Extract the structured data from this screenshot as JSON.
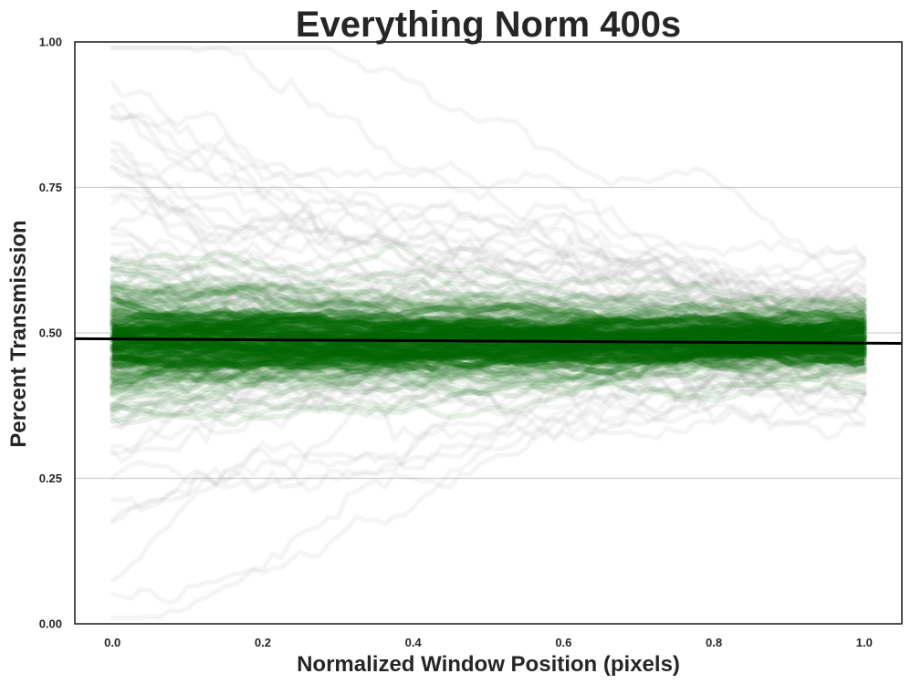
{
  "chart_data": {
    "type": "line",
    "title": "Everything Norm 400s",
    "xlabel": "Normalized Window Position (pixels)",
    "ylabel": "Percent Transmission",
    "xlim": [
      -0.05,
      1.05
    ],
    "ylim": [
      0.0,
      1.0
    ],
    "xticks": [
      0.0,
      0.2,
      0.4,
      0.6,
      0.8,
      1.0
    ],
    "xtick_labels": [
      "0.0",
      "0.2",
      "0.4",
      "0.6",
      "0.8",
      "1.0"
    ],
    "yticks": [
      0.0,
      0.25,
      0.5,
      0.75,
      1.0
    ],
    "ytick_labels": [
      "0.00",
      "0.25",
      "0.50",
      "0.75",
      "1.00"
    ],
    "grid": "horizontal",
    "legend": "none",
    "colors": {
      "highlight_traces": "#006400",
      "background_traces": "#aaaaaa",
      "fit_line": "#000000",
      "text": "#262626",
      "grid": "#cfcfcf"
    },
    "series": [
      {
        "role": "background-traces",
        "count": 60,
        "mean": 0.5,
        "spread": 0.28,
        "x_range": [
          0.0,
          1.0
        ]
      },
      {
        "role": "highlight-traces",
        "count": 140,
        "mean": 0.49,
        "spread": 0.06,
        "x_range": [
          0.0,
          1.0
        ]
      },
      {
        "role": "fit-line",
        "x": [
          -0.05,
          1.05
        ],
        "y": [
          0.49,
          0.482
        ]
      }
    ]
  }
}
